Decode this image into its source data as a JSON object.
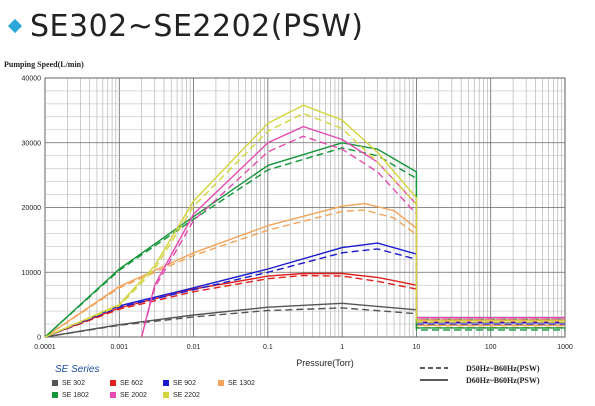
{
  "title": "SE302~SE2202(PSW)",
  "chart_data": {
    "type": "line",
    "ylabel": "Pumping Speed(L/min)",
    "xlabel": "Pressure(Torr)",
    "xscale": "log",
    "xlim": [
      0.0001,
      1000
    ],
    "ylim": [
      0,
      40000
    ],
    "x_ticks": [
      "0.0001",
      "0.001",
      "0.01",
      "0.1",
      "1",
      "10",
      "100",
      "1000"
    ],
    "y_ticks": [
      "0",
      "10000",
      "20000",
      "30000",
      "40000"
    ],
    "grid": true,
    "legend_group_title": "SE Series",
    "series": [
      {
        "name": "SE 302",
        "color": "#555555",
        "solid": [
          [
            0.0001,
            0
          ],
          [
            0.001,
            1900
          ],
          [
            0.01,
            3400
          ],
          [
            0.1,
            4600
          ],
          [
            1,
            5200
          ],
          [
            10,
            4200
          ]
        ],
        "dashed": [
          [
            0.0001,
            0
          ],
          [
            0.001,
            1800
          ],
          [
            0.01,
            3100
          ],
          [
            0.1,
            4100
          ],
          [
            1,
            4500
          ],
          [
            10,
            3600
          ]
        ]
      },
      {
        "name": "SE 602",
        "color": "#e0201e",
        "solid": [
          [
            0.0001,
            0
          ],
          [
            0.001,
            4500
          ],
          [
            0.01,
            7400
          ],
          [
            0.1,
            9400
          ],
          [
            0.3,
            9800
          ],
          [
            1,
            9800
          ],
          [
            3,
            9200
          ],
          [
            10,
            8000
          ]
        ],
        "dashed": [
          [
            0.0001,
            0
          ],
          [
            0.001,
            4300
          ],
          [
            0.01,
            7000
          ],
          [
            0.1,
            9000
          ],
          [
            0.3,
            9500
          ],
          [
            1,
            9400
          ],
          [
            3,
            8600
          ],
          [
            10,
            7400
          ]
        ]
      },
      {
        "name": "SE 902",
        "color": "#1a1ad0",
        "solid": [
          [
            0.0001,
            0
          ],
          [
            0.001,
            4800
          ],
          [
            0.01,
            7600
          ],
          [
            0.1,
            10500
          ],
          [
            1,
            13800
          ],
          [
            3,
            14500
          ],
          [
            10,
            12800
          ]
        ],
        "dashed": [
          [
            0.0001,
            0
          ],
          [
            0.001,
            4600
          ],
          [
            0.01,
            7300
          ],
          [
            0.1,
            10000
          ],
          [
            1,
            13000
          ],
          [
            3,
            13600
          ],
          [
            10,
            12000
          ]
        ]
      },
      {
        "name": "SE 1302",
        "color": "#f2a45a",
        "solid": [
          [
            0.0001,
            0
          ],
          [
            0.001,
            7800
          ],
          [
            0.01,
            13000
          ],
          [
            0.1,
            17200
          ],
          [
            1,
            20200
          ],
          [
            2,
            20600
          ],
          [
            5,
            19500
          ],
          [
            10,
            16800
          ]
        ],
        "dashed": [
          [
            0.0001,
            0
          ],
          [
            0.001,
            7600
          ],
          [
            0.01,
            12600
          ],
          [
            0.1,
            16500
          ],
          [
            1,
            19400
          ],
          [
            2,
            19600
          ],
          [
            5,
            18400
          ],
          [
            10,
            15800
          ]
        ]
      },
      {
        "name": "SE 1802",
        "color": "#14963a",
        "solid": [
          [
            0.0001,
            0
          ],
          [
            0.001,
            10500
          ],
          [
            0.01,
            18600
          ],
          [
            0.1,
            26500
          ],
          [
            1,
            30000
          ],
          [
            3,
            29000
          ],
          [
            10,
            25500
          ]
        ],
        "dashed": [
          [
            0.0001,
            0
          ],
          [
            0.001,
            10300
          ],
          [
            0.01,
            18200
          ],
          [
            0.1,
            25800
          ],
          [
            1,
            29200
          ],
          [
            3,
            28000
          ],
          [
            10,
            24500
          ]
        ]
      },
      {
        "name": "SE 2002",
        "color": "#e64ab0",
        "solid": [
          [
            0.002,
            0
          ],
          [
            0.003,
            8000
          ],
          [
            0.01,
            19000
          ],
          [
            0.1,
            30000
          ],
          [
            0.3,
            32500
          ],
          [
            1,
            30500
          ],
          [
            3,
            27000
          ],
          [
            10,
            20500
          ]
        ],
        "dashed": [
          [
            0.002,
            0
          ],
          [
            0.003,
            7600
          ],
          [
            0.01,
            18000
          ],
          [
            0.1,
            28600
          ],
          [
            0.3,
            31000
          ],
          [
            1,
            29000
          ],
          [
            3,
            25500
          ],
          [
            10,
            19000
          ]
        ]
      },
      {
        "name": "SE 2202",
        "color": "#d4d43c",
        "solid": [
          [
            0.0001,
            0
          ],
          [
            0.001,
            5000
          ],
          [
            0.003,
            11000
          ],
          [
            0.01,
            21000
          ],
          [
            0.1,
            33000
          ],
          [
            0.3,
            35800
          ],
          [
            1,
            33500
          ],
          [
            3,
            28500
          ],
          [
            10,
            21500
          ]
        ],
        "dashed": [
          [
            0.0001,
            0
          ],
          [
            0.001,
            4800
          ],
          [
            0.003,
            10500
          ],
          [
            0.01,
            20200
          ],
          [
            0.1,
            31800
          ],
          [
            0.3,
            34500
          ],
          [
            1,
            32200
          ],
          [
            3,
            27000
          ],
          [
            10,
            20500
          ]
        ]
      }
    ],
    "high_pressure_levels": [
      3000,
      2600,
      2200,
      1800,
      1400
    ],
    "line_style_legend": [
      {
        "style": "dashed",
        "label": "D50Hz~B60Hz(PSW)"
      },
      {
        "style": "solid",
        "label": "D60Hz~B60Hz(PSW)"
      }
    ]
  }
}
